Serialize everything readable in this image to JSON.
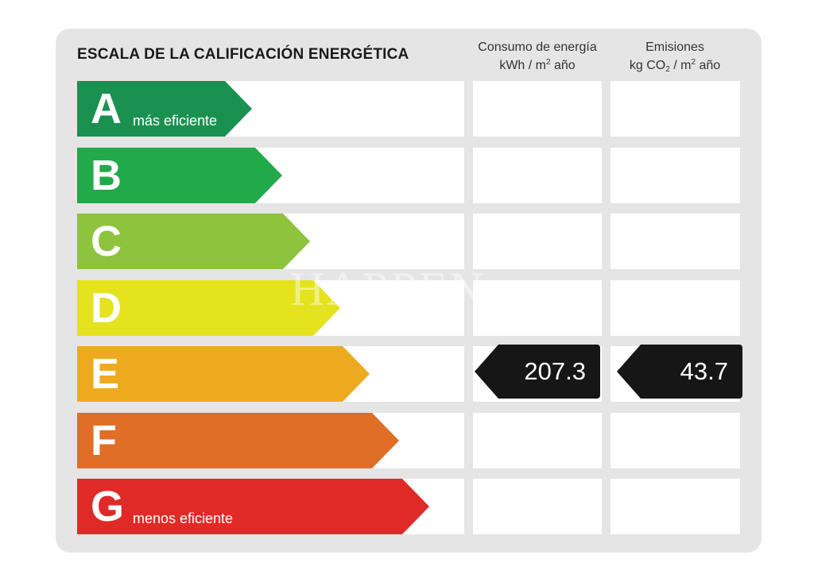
{
  "title": "ESCALA DE LA CALIFICACIÓN ENERGÉTICA",
  "columns": {
    "consumo": {
      "line1": "Consumo de energía",
      "line2_pre": "kWh / m",
      "line2_sup": "2",
      "line2_post": " año"
    },
    "emisiones": {
      "line1": "Emisiones",
      "line2_pre": "kg CO",
      "line2_sub": "2",
      "line2_mid": " / m",
      "line2_sup": "2",
      "line2_post": " año"
    }
  },
  "ratings": [
    {
      "letter": "A",
      "label": "más eficiente",
      "color": "#1a9150"
    },
    {
      "letter": "B",
      "label": "",
      "color": "#21a94a"
    },
    {
      "letter": "C",
      "label": "",
      "color": "#8ec33d"
    },
    {
      "letter": "D",
      "label": "",
      "color": "#e4e31d"
    },
    {
      "letter": "E",
      "label": "",
      "color": "#eeaa1e"
    },
    {
      "letter": "F",
      "label": "",
      "color": "#e06e27"
    },
    {
      "letter": "G",
      "label": "menos eficiente",
      "color": "#e02a28"
    }
  ],
  "current_rating": "E",
  "consumo_value": "207.3",
  "emisiones_value": "43.7",
  "value_tag_color": "#161616"
}
